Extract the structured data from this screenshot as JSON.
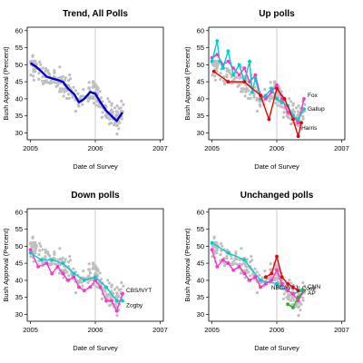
{
  "figure": {
    "xlabel": "Date of Survey",
    "ylabel": "Bush Approval (Percent)",
    "xticks": [
      "2005",
      "2006",
      "2007"
    ],
    "yticks": [
      "30",
      "35",
      "40",
      "45",
      "50",
      "55",
      "60"
    ]
  },
  "chart_data": [
    {
      "type": "scatter",
      "title": "Trend, All Polls",
      "xlim": [
        2004.95,
        2007.05
      ],
      "ylim": [
        28,
        61
      ],
      "grid": false,
      "reference_line_x": 2006.0,
      "colors": {
        "points": "#bfbfbf",
        "trend": "#0000cc",
        "refline": "#bbbbbb"
      },
      "series": [
        {
          "x": [
            2005.0,
            2005.08,
            2005.17,
            2005.25,
            2005.33,
            2005.42,
            2005.5,
            2005.58,
            2005.67,
            2005.75,
            2005.83,
            2005.92,
            2006.0,
            2006.08,
            2006.17,
            2006.25,
            2006.33,
            2006.42
          ],
          "y": [
            50.5,
            49.5,
            48,
            46.5,
            46,
            45.5,
            45,
            43,
            41.5,
            39,
            40,
            42,
            41.5,
            39,
            36.5,
            35,
            33.5,
            36
          ]
        }
      ]
    },
    {
      "type": "line",
      "title": "Up polls",
      "xlim": [
        2004.95,
        2007.05
      ],
      "ylim": [
        28,
        61
      ],
      "reference_line_x": 2006.0,
      "colors": {
        "points": "#bfbfbf",
        "refline": "#bbbbbb"
      },
      "series": [
        {
          "name": "Fox",
          "color": "#ff33cc",
          "x": [
            2005.0,
            2005.08,
            2005.17,
            2005.25,
            2005.33,
            2005.42,
            2005.5,
            2005.58,
            2005.67,
            2005.75,
            2005.83,
            2005.92,
            2006.0,
            2006.08,
            2006.17,
            2006.25,
            2006.33,
            2006.42
          ],
          "y": [
            52,
            53,
            50,
            51,
            49,
            47,
            49,
            45,
            47,
            41,
            40,
            42,
            44,
            40,
            36,
            35,
            33,
            40
          ]
        },
        {
          "name": "Gallup",
          "color": "#00cccc",
          "x": [
            2005.0,
            2005.08,
            2005.12,
            2005.17,
            2005.25,
            2005.33,
            2005.42,
            2005.5,
            2005.58,
            2005.62,
            2005.67,
            2005.75,
            2005.83,
            2005.92,
            2006.0,
            2006.08,
            2006.17,
            2006.25,
            2006.33,
            2006.42
          ],
          "y": [
            51,
            57,
            51,
            49,
            54,
            47,
            50,
            45,
            51,
            42,
            46,
            40,
            41,
            43,
            40,
            39,
            38,
            35,
            34,
            37
          ]
        },
        {
          "name": "Harris",
          "color": "#ee0000",
          "x": [
            2005.03,
            2005.25,
            2005.5,
            2005.75,
            2005.88,
            2006.0,
            2006.12,
            2006.25,
            2006.33,
            2006.38
          ],
          "y": [
            48,
            45,
            45,
            41,
            34,
            43,
            40,
            34,
            29,
            33
          ]
        }
      ]
    },
    {
      "type": "line",
      "title": "Down polls",
      "xlim": [
        2004.95,
        2007.05
      ],
      "ylim": [
        28,
        61
      ],
      "reference_line_x": 2006.0,
      "colors": {
        "points": "#bfbfbf",
        "refline": "#bbbbbb"
      },
      "series": [
        {
          "name": "CBS/NYT",
          "color": "#ff33cc",
          "x": [
            2005.0,
            2005.12,
            2005.25,
            2005.33,
            2005.42,
            2005.5,
            2005.58,
            2005.67,
            2005.75,
            2005.83,
            2005.92,
            2006.0,
            2006.08,
            2006.17,
            2006.25,
            2006.33,
            2006.42
          ],
          "y": [
            49,
            44,
            45,
            42,
            44,
            42,
            40,
            41,
            38,
            37,
            38,
            40,
            38,
            34,
            34,
            31,
            36
          ]
        },
        {
          "name": "Zogby",
          "color": "#00cccc",
          "x": [
            2005.0,
            2005.17,
            2005.33,
            2005.5,
            2005.67,
            2005.83,
            2006.0,
            2006.17,
            2006.33,
            2006.42
          ],
          "y": [
            48,
            46,
            46,
            45,
            42,
            40,
            41,
            38,
            34,
            34
          ]
        }
      ]
    },
    {
      "type": "line",
      "title": "Unchanged polls",
      "xlim": [
        2004.95,
        2007.05
      ],
      "ylim": [
        28,
        61
      ],
      "reference_line_x": 2006.0,
      "colors": {
        "points": "#bfbfbf",
        "refline": "#bbbbbb"
      },
      "series": [
        {
          "name": "NBC/WSJ",
          "color": "#00cccc",
          "x": [
            2005.0,
            2005.25,
            2005.5,
            2005.75,
            2006.0,
            2006.25,
            2006.38
          ],
          "y": [
            51,
            48,
            46,
            40,
            39,
            36,
            37
          ]
        },
        {
          "name": "Cook",
          "color": "#ee0000",
          "x": [
            2005.83,
            2005.92,
            2006.0,
            2006.08,
            2006.17,
            2006.25,
            2006.33
          ],
          "y": [
            41,
            42,
            47,
            41,
            39,
            38,
            37
          ]
        },
        {
          "name": "CNN",
          "color": "#ff33cc",
          "x": [
            2005.0,
            2005.08,
            2005.17,
            2005.25,
            2005.33,
            2005.42,
            2005.5,
            2005.58,
            2005.67,
            2005.75,
            2005.83,
            2005.92,
            2006.0,
            2006.08,
            2006.17,
            2006.25,
            2006.33,
            2006.42
          ],
          "y": [
            49,
            44,
            46,
            45,
            43,
            44,
            42,
            40,
            41,
            38,
            39,
            40,
            43,
            39,
            37,
            36,
            34,
            37
          ]
        },
        {
          "name": "AP",
          "color": "#33aa33",
          "x": [
            2006.17,
            2006.25,
            2006.33,
            2006.42
          ],
          "y": [
            33,
            32,
            35,
            37
          ]
        }
      ]
    }
  ]
}
